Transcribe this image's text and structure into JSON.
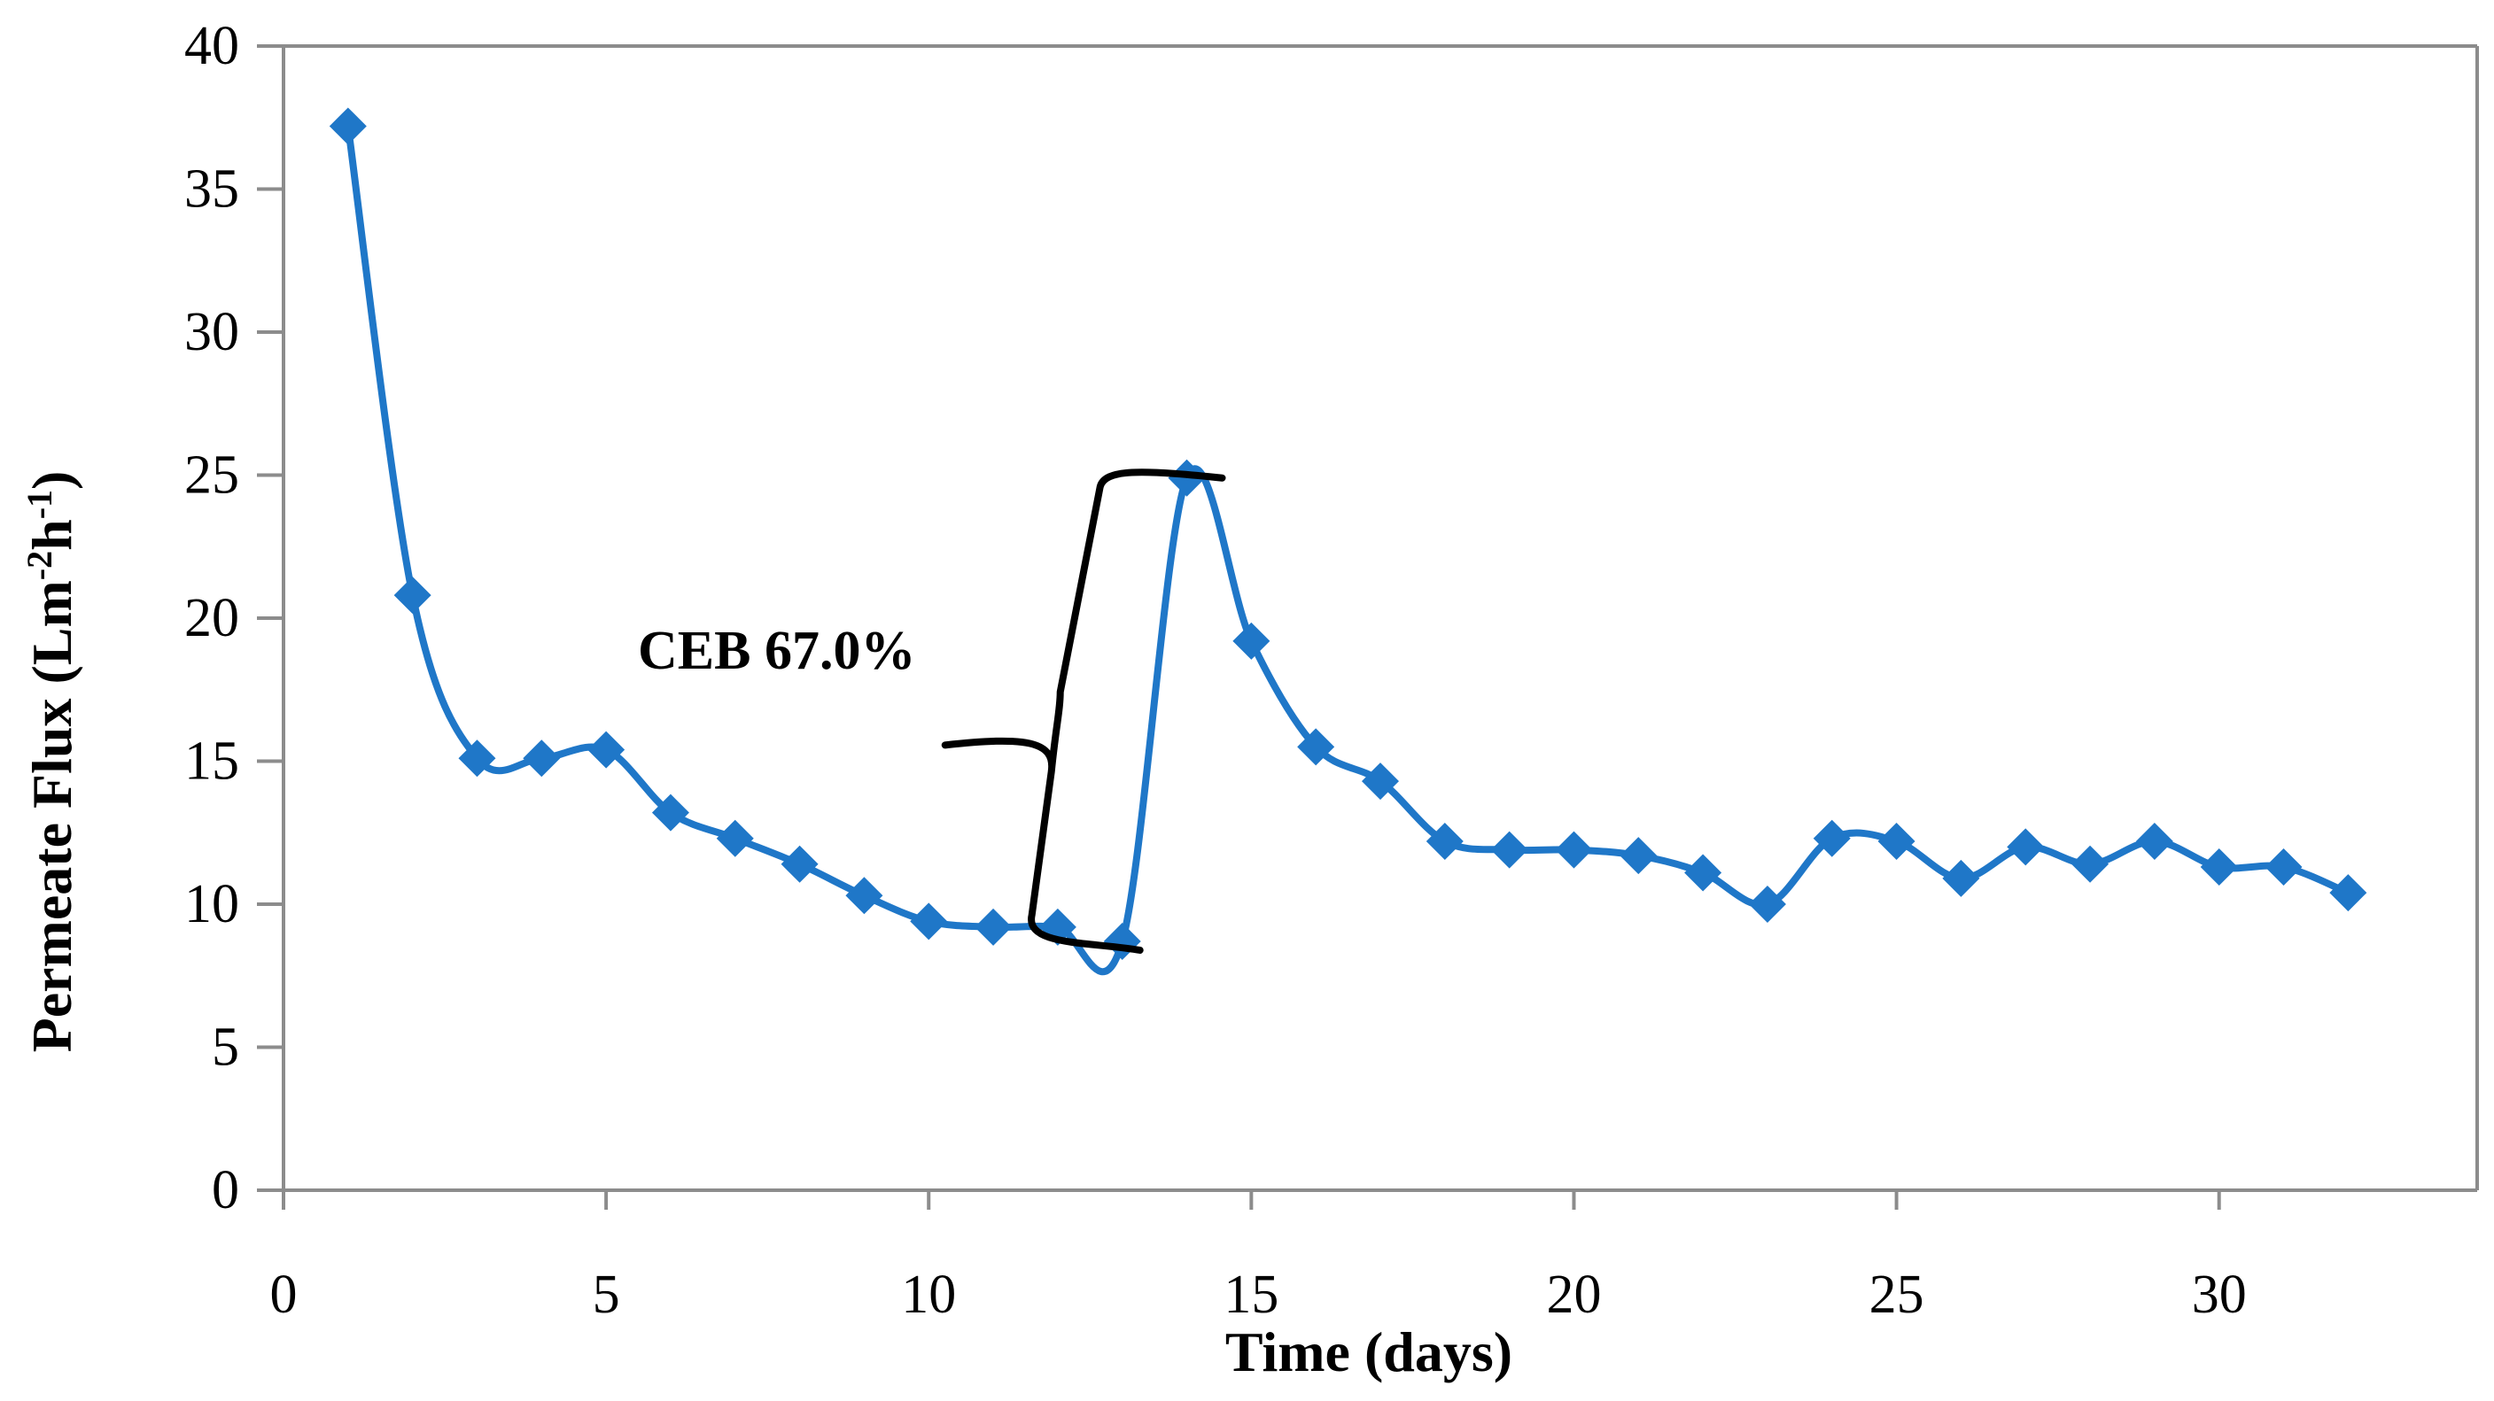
{
  "chart_data": {
    "type": "line",
    "title": "",
    "xlabel": "Time (days)",
    "ylabel": "Permeate Flux (Lm",
    "ylabel_parts": [
      "Permeate Flux (Lm",
      "-2",
      "h",
      "-1",
      ")"
    ],
    "xlim": [
      0,
      34
    ],
    "ylim": [
      0,
      40
    ],
    "xticks": [
      0,
      5,
      10,
      15,
      20,
      25,
      30
    ],
    "yticks": [
      0,
      5,
      10,
      15,
      20,
      25,
      30,
      35,
      40
    ],
    "grid": false,
    "legend": "none",
    "series": [
      {
        "name": "Permeate Flux",
        "color": "#1F77C8",
        "marker": "diamond",
        "smooth": true,
        "x": [
          1,
          2,
          3,
          4,
          5,
          6,
          7,
          8,
          9,
          10,
          11,
          12,
          13,
          14,
          15,
          16,
          17,
          18,
          19,
          20,
          21,
          22,
          23,
          24,
          25,
          26,
          27,
          28,
          29,
          30,
          31,
          32
        ],
        "values": [
          37.2,
          20.8,
          15.1,
          15.1,
          15.4,
          13.2,
          12.3,
          11.4,
          10.3,
          9.4,
          9.2,
          9.2,
          8.7,
          24.9,
          19.2,
          15.5,
          14.3,
          12.2,
          11.9,
          11.9,
          11.7,
          11.1,
          10.0,
          12.3,
          12.2,
          10.9,
          12.0,
          11.4,
          12.2,
          11.3,
          11.3,
          10.4
        ]
      }
    ],
    "annotation": {
      "text": "CEB 67.0%",
      "from_x": 13,
      "from_y": 8.7,
      "to_x": 14,
      "to_y": 24.9
    }
  }
}
